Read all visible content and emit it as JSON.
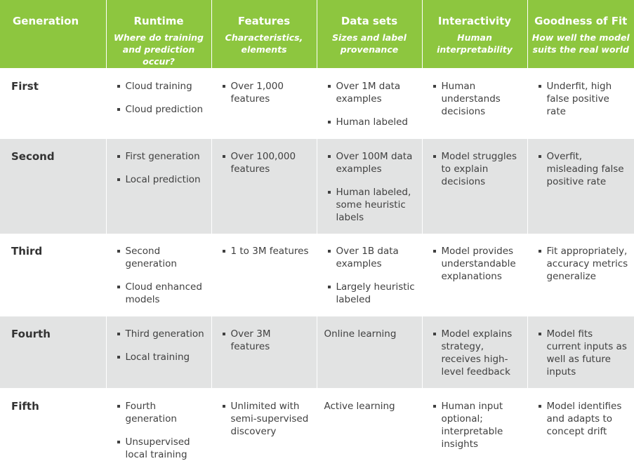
{
  "header": {
    "generation": "Generation",
    "runtime": {
      "title": "Runtime",
      "subtitle": "Where do training and prediction occur?"
    },
    "features": {
      "title": "Features",
      "subtitle": "Characteristics, elements"
    },
    "data_sets": {
      "title": "Data sets",
      "subtitle": "Sizes and label provenance"
    },
    "interactivity": {
      "title": "Interactivity",
      "subtitle": "Human interpretability"
    },
    "fit": {
      "title": "Goodness of Fit",
      "subtitle": "How well the model suits the real world"
    }
  },
  "rows": [
    {
      "name": "First",
      "runtime": [
        "Cloud training",
        "Cloud prediction"
      ],
      "features": [
        "Over 1,000 features"
      ],
      "data_sets": [
        "Over 1M data examples",
        "Human labeled"
      ],
      "interactivity": [
        "Human understands decisions"
      ],
      "fit": [
        "Underfit, high false positive rate"
      ]
    },
    {
      "name": "Second",
      "runtime": [
        "First generation",
        "Local prediction"
      ],
      "features": [
        "Over 100,000 features"
      ],
      "data_sets": [
        "Over 100M data examples",
        "Human labeled, some heuristic labels"
      ],
      "interactivity": [
        "Model struggles to explain decisions"
      ],
      "fit": [
        "Overfit, misleading false positive rate"
      ]
    },
    {
      "name": "Third",
      "runtime": [
        "Second generation",
        "Cloud enhanced models"
      ],
      "features": [
        "1 to 3M features"
      ],
      "data_sets": [
        "Over 1B data examples",
        "Largely heuristic labeled"
      ],
      "interactivity": [
        "Model provides understandable explanations"
      ],
      "fit": [
        "Fit appropriately, accuracy metrics generalize"
      ]
    },
    {
      "name": "Fourth",
      "runtime": [
        "Third generation",
        "Local training"
      ],
      "features": [
        "Over 3M features"
      ],
      "data_sets_plain": "Online learning",
      "interactivity": [
        "Model explains strategy, receives high-level feedback"
      ],
      "fit": [
        "Model fits current inputs as well as future inputs"
      ]
    },
    {
      "name": "Fifth",
      "runtime": [
        "Fourth generation",
        "Unsupervised local training"
      ],
      "features": [
        "Unlimited with semi-supervised discovery"
      ],
      "data_sets_plain": "Active learning",
      "interactivity": [
        "Human input optional; interpretable insights"
      ],
      "fit": [
        "Model identifies and adapts to concept drift"
      ]
    }
  ],
  "colors": {
    "header_bg": "#8dc63f",
    "header_text": "#ffffff",
    "row_alt_bg": "#e2e3e3",
    "body_text": "#404040"
  }
}
